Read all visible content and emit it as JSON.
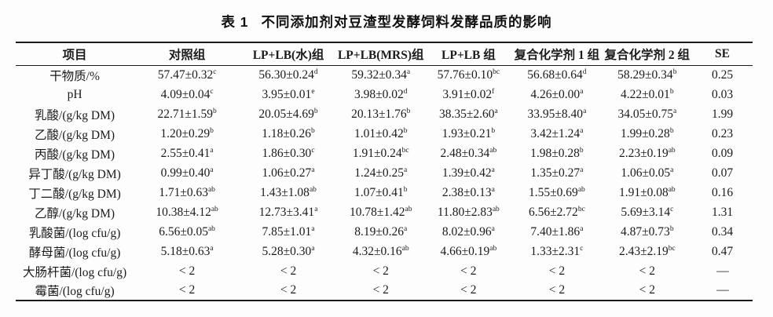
{
  "title": {
    "number": "表 1",
    "text": "不同添加剂对豆渣型发酵饲料发酵品质的影响"
  },
  "table": {
    "columns": [
      "项目",
      "对照组",
      "LP+LB(水)组",
      "LP+LB(MRS)组",
      "LP+LB 组",
      "复合化学剂 1 组",
      "复合化学剂 2 组",
      "SE"
    ],
    "rows": [
      {
        "item": "干物质/%",
        "cells": [
          {
            "value": "57.47±0.32",
            "sup": "c"
          },
          {
            "value": "56.30±0.24",
            "sup": "d"
          },
          {
            "value": "59.32±0.34",
            "sup": "a"
          },
          {
            "value": "57.76±0.10",
            "sup": "bc"
          },
          {
            "value": "56.68±0.64",
            "sup": "d"
          },
          {
            "value": "58.29±0.34",
            "sup": "b"
          },
          {
            "value": "0.25",
            "sup": ""
          }
        ]
      },
      {
        "item": "pH",
        "cells": [
          {
            "value": "4.09±0.04",
            "sup": "c"
          },
          {
            "value": "3.95±0.01",
            "sup": "e"
          },
          {
            "value": "3.98±0.02",
            "sup": "d"
          },
          {
            "value": "3.91±0.02",
            "sup": "f"
          },
          {
            "value": "4.26±0.00",
            "sup": "a"
          },
          {
            "value": "4.22±0.01",
            "sup": "b"
          },
          {
            "value": "0.03",
            "sup": ""
          }
        ]
      },
      {
        "item": "乳酸/(g/kg DM)",
        "cells": [
          {
            "value": "22.71±1.59",
            "sup": "b"
          },
          {
            "value": "20.05±4.69",
            "sup": "b"
          },
          {
            "value": "20.13±1.76",
            "sup": "b"
          },
          {
            "value": "38.35±2.60",
            "sup": "a"
          },
          {
            "value": "33.95±8.40",
            "sup": "a"
          },
          {
            "value": "34.05±0.75",
            "sup": "a"
          },
          {
            "value": "1.99",
            "sup": ""
          }
        ]
      },
      {
        "item": "乙酸/(g/kg DM)",
        "cells": [
          {
            "value": "1.20±0.29",
            "sup": "b"
          },
          {
            "value": "1.18±0.26",
            "sup": "b"
          },
          {
            "value": "1.01±0.42",
            "sup": "b"
          },
          {
            "value": "1.93±0.21",
            "sup": "b"
          },
          {
            "value": "3.42±1.24",
            "sup": "a"
          },
          {
            "value": "1.99±0.28",
            "sup": "b"
          },
          {
            "value": "0.23",
            "sup": ""
          }
        ]
      },
      {
        "item": "丙酸/(g/kg DM)",
        "cells": [
          {
            "value": "2.55±0.41",
            "sup": "a"
          },
          {
            "value": "1.86±0.30",
            "sup": "c"
          },
          {
            "value": "1.91±0.24",
            "sup": "bc"
          },
          {
            "value": "2.48±0.34",
            "sup": "ab"
          },
          {
            "value": "1.98±0.28",
            "sup": "b"
          },
          {
            "value": "2.23±0.19",
            "sup": "ab"
          },
          {
            "value": "0.09",
            "sup": ""
          }
        ]
      },
      {
        "item": "异丁酸/(g/kg DM)",
        "cells": [
          {
            "value": "0.99±0.40",
            "sup": "a"
          },
          {
            "value": "1.06±0.27",
            "sup": "a"
          },
          {
            "value": "1.24±0.25",
            "sup": "a"
          },
          {
            "value": "1.39±0.42",
            "sup": "a"
          },
          {
            "value": "1.35±0.27",
            "sup": "a"
          },
          {
            "value": "1.06±0.05",
            "sup": "a"
          },
          {
            "value": "0.07",
            "sup": ""
          }
        ]
      },
      {
        "item": "丁二酸/(g/kg DM)",
        "cells": [
          {
            "value": "1.71±0.63",
            "sup": "ab"
          },
          {
            "value": "1.43±1.08",
            "sup": "ab"
          },
          {
            "value": "1.07±0.41",
            "sup": "b"
          },
          {
            "value": "2.38±0.13",
            "sup": "a"
          },
          {
            "value": "1.55±0.69",
            "sup": "ab"
          },
          {
            "value": "1.91±0.08",
            "sup": "ab"
          },
          {
            "value": "0.16",
            "sup": ""
          }
        ]
      },
      {
        "item": "乙醇/(g/kg DM)",
        "cells": [
          {
            "value": "10.38±4.12",
            "sup": "ab"
          },
          {
            "value": "12.73±3.41",
            "sup": "a"
          },
          {
            "value": "10.78±1.42",
            "sup": "ab"
          },
          {
            "value": "11.80±2.83",
            "sup": "ab"
          },
          {
            "value": "6.56±2.72",
            "sup": "bc"
          },
          {
            "value": "5.69±3.14",
            "sup": "c"
          },
          {
            "value": "1.31",
            "sup": ""
          }
        ]
      },
      {
        "item": "乳酸菌/(log cfu/g)",
        "cells": [
          {
            "value": "6.56±0.05",
            "sup": "ab"
          },
          {
            "value": "7.85±1.01",
            "sup": "a"
          },
          {
            "value": "8.19±0.26",
            "sup": "a"
          },
          {
            "value": "8.02±0.96",
            "sup": "a"
          },
          {
            "value": "7.40±1.86",
            "sup": "a"
          },
          {
            "value": "4.87±0.73",
            "sup": "b"
          },
          {
            "value": "0.34",
            "sup": ""
          }
        ]
      },
      {
        "item": "酵母菌/(log cfu/g)",
        "cells": [
          {
            "value": "5.18±0.63",
            "sup": "a"
          },
          {
            "value": "5.28±0.30",
            "sup": "a"
          },
          {
            "value": "4.32±0.16",
            "sup": "ab"
          },
          {
            "value": "4.66±0.19",
            "sup": "ab"
          },
          {
            "value": "1.33±2.31",
            "sup": "c"
          },
          {
            "value": "2.43±2.19",
            "sup": "bc"
          },
          {
            "value": "0.47",
            "sup": ""
          }
        ]
      },
      {
        "item": "大肠杆菌/(log cfu/g)",
        "cells": [
          {
            "value": "< 2",
            "sup": ""
          },
          {
            "value": "< 2",
            "sup": ""
          },
          {
            "value": "< 2",
            "sup": ""
          },
          {
            "value": "< 2",
            "sup": ""
          },
          {
            "value": "< 2",
            "sup": ""
          },
          {
            "value": "< 2",
            "sup": ""
          },
          {
            "value": "—",
            "sup": ""
          }
        ]
      },
      {
        "item": "霉菌/(log cfu/g)",
        "cells": [
          {
            "value": "< 2",
            "sup": ""
          },
          {
            "value": "< 2",
            "sup": ""
          },
          {
            "value": "< 2",
            "sup": ""
          },
          {
            "value": "< 2",
            "sup": ""
          },
          {
            "value": "< 2",
            "sup": ""
          },
          {
            "value": "< 2",
            "sup": ""
          },
          {
            "value": "—",
            "sup": ""
          }
        ]
      }
    ]
  }
}
